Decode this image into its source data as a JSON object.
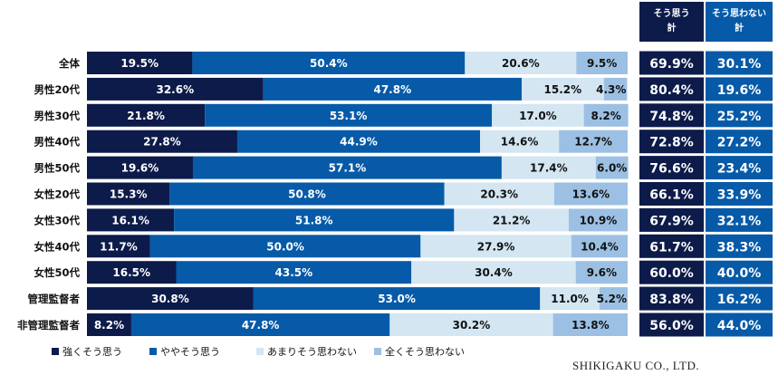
{
  "chart_data": {
    "type": "bar",
    "stacked": true,
    "orientation": "horizontal",
    "categories": [
      "全体",
      "男性20代",
      "男性30代",
      "男性40代",
      "男性50代",
      "女性20代",
      "女性30代",
      "女性40代",
      "女性50代",
      "管理監督者",
      "非管理監督者"
    ],
    "series": [
      {
        "name": "強くそう思う",
        "color": "#0d1b4a",
        "values": [
          19.5,
          32.6,
          21.8,
          27.8,
          19.6,
          15.3,
          16.1,
          11.7,
          16.5,
          30.8,
          8.2
        ]
      },
      {
        "name": "ややそう思う",
        "color": "#065aa8",
        "values": [
          50.4,
          47.8,
          53.1,
          44.9,
          57.1,
          50.8,
          51.8,
          50.0,
          43.5,
          53.0,
          47.8
        ]
      },
      {
        "name": "あまりそう思わない",
        "color": "#d3e6f2",
        "values": [
          20.6,
          15.2,
          17.0,
          14.6,
          17.4,
          20.3,
          21.2,
          27.9,
          30.4,
          11.0,
          30.2
        ]
      },
      {
        "name": "全くそう思わない",
        "color": "#9cc0e3",
        "values": [
          9.5,
          4.3,
          8.2,
          12.7,
          6.0,
          13.6,
          10.9,
          10.4,
          9.6,
          5.2,
          13.8
        ]
      }
    ],
    "value_labels": [
      [
        "19.5%",
        "50.4%",
        "20.6%",
        "9.5%"
      ],
      [
        "32.6%",
        "47.8%",
        "15.2%",
        "4.3%"
      ],
      [
        "21.8%",
        "53.1%",
        "17.0%",
        "8.2%"
      ],
      [
        "27.8%",
        "44.9%",
        "14.6%",
        "12.7%"
      ],
      [
        "19.6%",
        "57.1%",
        "17.4%",
        "6.0%"
      ],
      [
        "15.3%",
        "50.8%",
        "20.3%",
        "13.6%"
      ],
      [
        "16.1%",
        "51.8%",
        "21.2%",
        "10.9%"
      ],
      [
        "11.7%",
        "50.0%",
        "27.9%",
        "10.4%"
      ],
      [
        "16.5%",
        "43.5%",
        "30.4%",
        "9.6%"
      ],
      [
        "30.8%",
        "53.0%",
        "11.0%",
        "5.2%"
      ],
      [
        "8.2%",
        "47.8%",
        "30.2%",
        "13.8%"
      ]
    ],
    "xlim": [
      0,
      100
    ],
    "grid": false,
    "legend_position": "bottom-left",
    "summary_table": {
      "headers": [
        [
          "そう思う",
          "計"
        ],
        [
          "そう思わない",
          "計"
        ]
      ],
      "header_colors": [
        "#0d1b4a",
        "#065aa8"
      ],
      "cell_colors": [
        "#0d1b4a",
        "#065aa8"
      ],
      "agree": [
        "69.9%",
        "80.4%",
        "74.8%",
        "72.8%",
        "76.6%",
        "66.1%",
        "67.9%",
        "61.7%",
        "60.0%",
        "83.8%",
        "56.0%"
      ],
      "disagree": [
        "30.1%",
        "19.6%",
        "25.2%",
        "27.2%",
        "23.4%",
        "33.9%",
        "32.1%",
        "38.3%",
        "40.0%",
        "16.2%",
        "44.0%"
      ]
    }
  },
  "footer": {
    "company": "SHIKIGAKU CO., LTD."
  }
}
